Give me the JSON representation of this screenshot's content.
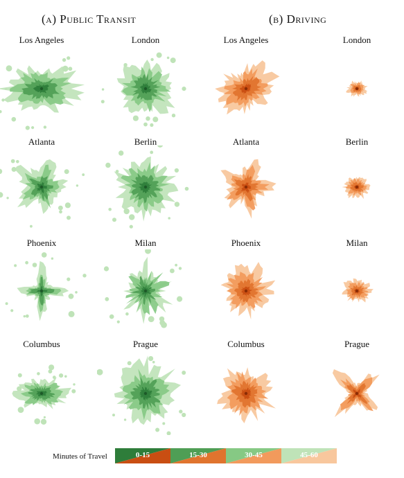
{
  "titles": {
    "transit": "(a) Public Transit",
    "driving": "(b) Driving"
  },
  "colors": {
    "transit": [
      "#2e7d3a",
      "#4f9e55",
      "#86c984",
      "#bfe3b8"
    ],
    "driving": [
      "#c94e12",
      "#e0742e",
      "#f29a5c",
      "#f8c79d"
    ]
  },
  "panels": [
    {
      "mode": "transit",
      "city": "Los Angeles",
      "shape": "wide",
      "scale": 1.0
    },
    {
      "mode": "transit",
      "city": "London",
      "shape": "round",
      "scale": 1.0
    },
    {
      "mode": "driving",
      "city": "Los Angeles",
      "shape": "tilted",
      "scale": 1.0
    },
    {
      "mode": "driving",
      "city": "London",
      "shape": "small",
      "scale": 0.32
    },
    {
      "mode": "transit",
      "city": "Atlanta",
      "shape": "star",
      "scale": 0.95
    },
    {
      "mode": "transit",
      "city": "Berlin",
      "shape": "round",
      "scale": 1.05
    },
    {
      "mode": "driving",
      "city": "Atlanta",
      "shape": "star",
      "scale": 0.95
    },
    {
      "mode": "driving",
      "city": "Berlin",
      "shape": "small",
      "scale": 0.45
    },
    {
      "mode": "transit",
      "city": "Phoenix",
      "shape": "cross",
      "scale": 0.95
    },
    {
      "mode": "transit",
      "city": "Milan",
      "shape": "spiky",
      "scale": 1.0
    },
    {
      "mode": "driving",
      "city": "Phoenix",
      "shape": "round",
      "scale": 0.9
    },
    {
      "mode": "driving",
      "city": "Milan",
      "shape": "small",
      "scale": 0.48
    },
    {
      "mode": "transit",
      "city": "Columbus",
      "shape": "wide",
      "scale": 0.7
    },
    {
      "mode": "transit",
      "city": "Prague",
      "shape": "round",
      "scale": 1.1
    },
    {
      "mode": "driving",
      "city": "Columbus",
      "shape": "round",
      "scale": 0.95
    },
    {
      "mode": "driving",
      "city": "Prague",
      "shape": "xstar",
      "scale": 0.95
    }
  ],
  "legend": {
    "label": "Minutes of Travel",
    "bins": [
      "0-15",
      "15-30",
      "30-45",
      "45-60"
    ]
  }
}
